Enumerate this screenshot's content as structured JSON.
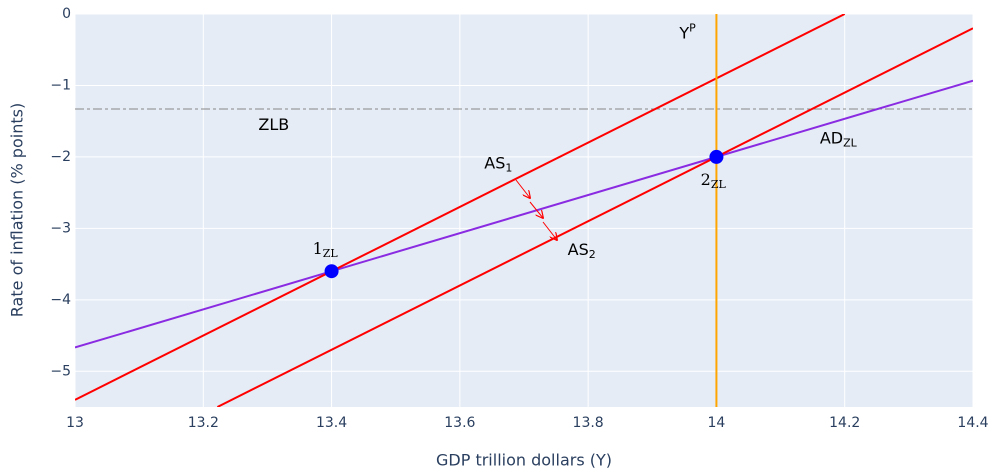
{
  "chart_data": {
    "type": "line",
    "xlabel": "GDP trillion dollars (Y)",
    "ylabel": "Rate of inflation (% points)",
    "xlim": [
      13,
      14.4
    ],
    "ylim": [
      -5.5,
      0
    ],
    "xticks": [
      13,
      13.2,
      13.4,
      13.6,
      13.8,
      14,
      14.2,
      14.4
    ],
    "yticks": [
      0,
      {
        "value": -1,
        "label": "−1"
      },
      {
        "value": -2,
        "label": "−2"
      },
      {
        "value": -3,
        "label": "−3"
      },
      {
        "value": -4,
        "label": "−4"
      },
      {
        "value": -5,
        "label": "−5"
      }
    ],
    "grid": true,
    "series": [
      {
        "color": "#888888",
        "dash": "dashdot",
        "x": [
          13,
          14.4
        ],
        "values": [
          -1.33,
          -1.33
        ]
      },
      {
        "color": "#8a2be2",
        "x": [
          13,
          14.4
        ],
        "values": [
          -4.667,
          -0.933
        ]
      },
      {
        "color": "#ff0000",
        "x": [
          13,
          14.2
        ],
        "values": [
          -5.4,
          0
        ]
      },
      {
        "color": "#ff0000",
        "x": [
          13.222,
          14.4
        ],
        "values": [
          -5.5,
          -0.2
        ]
      },
      {
        "color": "#ffa500",
        "x": [
          14,
          14
        ],
        "values": [
          -5.5,
          0
        ]
      }
    ],
    "points": {
      "color": "#0000ff",
      "x": [
        13.4,
        14
      ],
      "values": [
        -3.6,
        -2
      ]
    },
    "annotations": [
      {
        "text": "ZLB"
      },
      {
        "text": "Y",
        "sup": "P"
      },
      {
        "text": "AS",
        "sub": "1"
      },
      {
        "text": "AS",
        "sub": "2"
      },
      {
        "text": "AD",
        "sub": "ZL"
      },
      {
        "text": "1",
        "sub": "ZL"
      },
      {
        "text": "2",
        "sub": "ZL"
      }
    ]
  }
}
